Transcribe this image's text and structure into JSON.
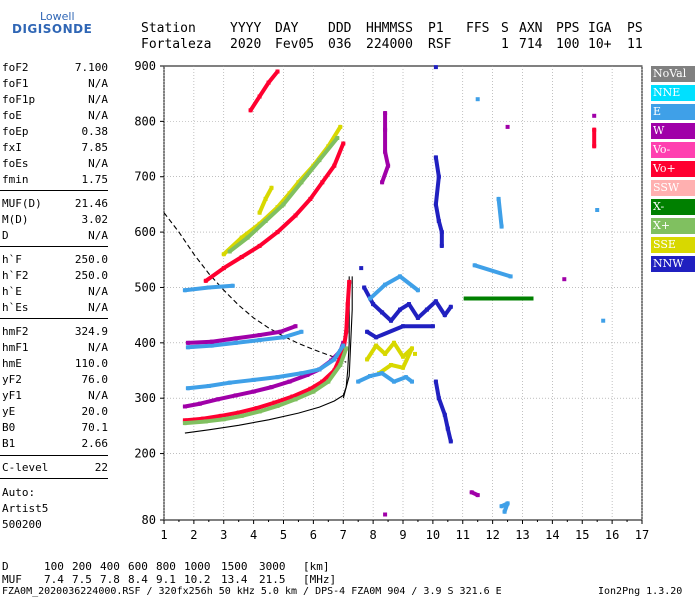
{
  "logo": {
    "top": "Lowell",
    "bottom": "DIGISONDE"
  },
  "header": {
    "labels": [
      "Station",
      "YYYY",
      "DAY",
      "DDD",
      "HHMMSS",
      "P1",
      "FFS",
      "S",
      "AXN",
      "PPS",
      "IGA",
      "PS"
    ],
    "values": [
      "Fortaleza",
      "2020",
      "Fev05",
      "036",
      "224000",
      "RSF",
      "",
      "1",
      "714",
      "100",
      "10+",
      "11"
    ]
  },
  "params": [
    {
      "label": "foF2",
      "value": "7.100"
    },
    {
      "label": "foF1",
      "value": "N/A"
    },
    {
      "label": "foF1p",
      "value": "N/A"
    },
    {
      "label": "foE",
      "value": "N/A"
    },
    {
      "label": "foEp",
      "value": "0.38"
    },
    {
      "label": "fxI",
      "value": "7.85"
    },
    {
      "label": "foEs",
      "value": "N/A"
    },
    {
      "label": "fmin",
      "value": "1.75"
    },
    {
      "label": "MUF(D)",
      "value": "21.46"
    },
    {
      "label": "M(D)",
      "value": "3.02"
    },
    {
      "label": "D",
      "value": "N/A"
    },
    {
      "label": "h`F",
      "value": "250.0"
    },
    {
      "label": "h`F2",
      "value": "250.0"
    },
    {
      "label": "h`E",
      "value": "N/A"
    },
    {
      "label": "h`Es",
      "value": "N/A"
    },
    {
      "label": "hmF2",
      "value": "324.9"
    },
    {
      "label": "hmF1",
      "value": "N/A"
    },
    {
      "label": "hmE",
      "value": "110.0"
    },
    {
      "label": "yF2",
      "value": "76.0"
    },
    {
      "label": "yF1",
      "value": "N/A"
    },
    {
      "label": "yE",
      "value": "20.0"
    },
    {
      "label": "B0",
      "value": "70.1"
    },
    {
      "label": "B1",
      "value": "2.66"
    },
    {
      "label": "C-level",
      "value": "22"
    }
  ],
  "auto": {
    "line1": "Auto:",
    "line2": "Artist5",
    "line3": "500200"
  },
  "legend": [
    {
      "label": "NoVal",
      "color": "#808080"
    },
    {
      "label": "NNE",
      "color": "#00e0ff"
    },
    {
      "label": "E",
      "color": "#3fa0e8"
    },
    {
      "label": "W",
      "color": "#a000a8"
    },
    {
      "label": "Vo-",
      "color": "#ff40b0"
    },
    {
      "label": "Vo+",
      "color": "#ff0030"
    },
    {
      "label": "SSW",
      "color": "#ffb0b0"
    },
    {
      "label": "X-",
      "color": "#008000"
    },
    {
      "label": "X+",
      "color": "#80c060"
    },
    {
      "label": "SSE",
      "color": "#d8d800"
    },
    {
      "label": "NNW",
      "color": "#2020c0"
    }
  ],
  "footer": {
    "d_label": "D",
    "d_values": [
      "100",
      "200",
      "400",
      "600",
      "800",
      "1000",
      "1500",
      "3000",
      "[km]"
    ],
    "muf_label": "MUF",
    "muf_values": [
      "7.4",
      "7.5",
      "7.8",
      "8.4",
      "9.1",
      "10.2",
      "13.4",
      "21.5",
      "[MHz]"
    ],
    "file_line": "FZA0M_2020036224000.RSF / 320fx256h 50 kHz 5.0 km / DPS-4 FZA0M 904 / 3.9 S 321.6 E",
    "version": "Ion2Png 1.3.20"
  },
  "chart_data": {
    "type": "scatter",
    "xlabel": "",
    "ylabel": "",
    "xlim": [
      1,
      17
    ],
    "ylim": [
      80,
      900
    ],
    "x_ticks": [
      1,
      2,
      3,
      4,
      5,
      6,
      7,
      8,
      9,
      10,
      11,
      12,
      13,
      14,
      15,
      16,
      17
    ],
    "y_ticks": [
      80,
      200,
      300,
      400,
      500,
      600,
      700,
      800,
      900
    ],
    "grid": "dotted",
    "legend_position": "right",
    "traces": [
      {
        "name": "W",
        "color": "#a000a8",
        "points": [
          [
            1.7,
            285
          ],
          [
            2.2,
            290
          ],
          [
            2.8,
            298
          ],
          [
            3.4,
            305
          ],
          [
            4.0,
            312
          ],
          [
            4.6,
            320
          ],
          [
            5.2,
            330
          ],
          [
            5.8,
            342
          ],
          [
            6.2,
            352
          ],
          [
            6.6,
            368
          ],
          [
            6.9,
            385
          ],
          [
            7.0,
            400
          ]
        ]
      },
      {
        "name": "Vo+",
        "color": "#ff0030",
        "points": [
          [
            1.7,
            260
          ],
          [
            2.3,
            263
          ],
          [
            2.9,
            268
          ],
          [
            3.5,
            274
          ],
          [
            4.1,
            282
          ],
          [
            4.7,
            292
          ],
          [
            5.3,
            303
          ],
          [
            5.9,
            317
          ],
          [
            6.3,
            330
          ],
          [
            6.7,
            350
          ],
          [
            7.0,
            385
          ],
          [
            7.1,
            420
          ],
          [
            7.15,
            470
          ],
          [
            7.2,
            510
          ]
        ]
      },
      {
        "name": "X+",
        "color": "#80c060",
        "points": [
          [
            1.7,
            255
          ],
          [
            2.4,
            258
          ],
          [
            3.0,
            262
          ],
          [
            3.6,
            268
          ],
          [
            4.2,
            276
          ],
          [
            4.8,
            286
          ],
          [
            5.4,
            298
          ],
          [
            6.0,
            312
          ],
          [
            6.5,
            330
          ],
          [
            6.9,
            360
          ],
          [
            7.1,
            390
          ]
        ]
      },
      {
        "name": "E",
        "color": "#3fa0e8",
        "points": [
          [
            1.8,
            318
          ],
          [
            2.5,
            322
          ],
          [
            3.2,
            328
          ],
          [
            4.0,
            333
          ],
          [
            4.8,
            338
          ],
          [
            5.6,
            345
          ],
          [
            6.2,
            352
          ],
          [
            6.7,
            370
          ],
          [
            7.0,
            395
          ],
          [
            1.8,
            392
          ],
          [
            2.6,
            395
          ],
          [
            3.4,
            400
          ],
          [
            4.2,
            405
          ],
          [
            5.0,
            410
          ],
          [
            5.6,
            420
          ],
          [
            1.7,
            495
          ],
          [
            2.5,
            500
          ],
          [
            3.3,
            503
          ]
        ]
      },
      {
        "name": "W",
        "color": "#a000a8",
        "points": [
          [
            1.8,
            400
          ],
          [
            2.6,
            402
          ],
          [
            3.4,
            408
          ],
          [
            4.2,
            414
          ],
          [
            4.9,
            420
          ],
          [
            5.4,
            430
          ]
        ]
      },
      {
        "name": "Vo+",
        "color": "#ff0030",
        "points": [
          [
            2.4,
            512
          ],
          [
            3.0,
            535
          ],
          [
            3.6,
            555
          ],
          [
            4.2,
            575
          ],
          [
            4.8,
            600
          ],
          [
            5.4,
            630
          ],
          [
            5.9,
            660
          ],
          [
            6.3,
            690
          ],
          [
            6.7,
            720
          ],
          [
            7.0,
            760
          ]
        ]
      },
      {
        "name": "SSE",
        "color": "#d8d800",
        "points": [
          [
            3.0,
            560
          ],
          [
            3.6,
            590
          ],
          [
            4.2,
            615
          ],
          [
            4.8,
            645
          ],
          [
            5.2,
            670
          ],
          [
            5.5,
            690
          ],
          [
            6.0,
            720
          ],
          [
            6.5,
            755
          ],
          [
            6.9,
            790
          ],
          [
            4.2,
            635
          ],
          [
            4.4,
            660
          ],
          [
            4.6,
            680
          ]
        ]
      },
      {
        "name": "X+",
        "color": "#80c060",
        "points": [
          [
            3.2,
            565
          ],
          [
            3.8,
            590
          ],
          [
            4.4,
            620
          ],
          [
            5.0,
            650
          ],
          [
            5.6,
            690
          ],
          [
            6.2,
            730
          ],
          [
            6.8,
            770
          ]
        ]
      },
      {
        "name": "Vo+",
        "color": "#ff0030",
        "points": [
          [
            3.9,
            820
          ],
          [
            4.2,
            845
          ],
          [
            4.5,
            870
          ],
          [
            4.8,
            890
          ]
        ]
      },
      {
        "name": "NNW",
        "color": "#2020c0",
        "points": [
          [
            7.7,
            500
          ],
          [
            8.0,
            470
          ],
          [
            8.3,
            455
          ],
          [
            8.6,
            440
          ],
          [
            8.9,
            460
          ],
          [
            9.2,
            470
          ],
          [
            9.5,
            445
          ],
          [
            9.8,
            460
          ],
          [
            10.1,
            475
          ],
          [
            10.4,
            450
          ],
          [
            10.6,
            465
          ],
          [
            7.6,
            535
          ],
          [
            7.8,
            420
          ],
          [
            8.1,
            410
          ],
          [
            9.0,
            430
          ],
          [
            10.0,
            430
          ]
        ]
      },
      {
        "name": "SSE",
        "color": "#d8d800",
        "points": [
          [
            7.8,
            370
          ],
          [
            8.1,
            395
          ],
          [
            8.4,
            380
          ],
          [
            8.7,
            400
          ],
          [
            9.0,
            375
          ],
          [
            9.3,
            390
          ],
          [
            9.0,
            355
          ],
          [
            8.6,
            360
          ],
          [
            8.2,
            345
          ],
          [
            9.4,
            380
          ]
        ]
      },
      {
        "name": "E",
        "color": "#3fa0e8",
        "points": [
          [
            7.5,
            330
          ],
          [
            7.9,
            340
          ],
          [
            8.3,
            345
          ],
          [
            8.7,
            330
          ],
          [
            9.1,
            338
          ],
          [
            9.3,
            330
          ],
          [
            7.9,
            480
          ],
          [
            8.4,
            505
          ],
          [
            8.9,
            520
          ],
          [
            9.5,
            495
          ]
        ]
      },
      {
        "name": "W",
        "color": "#a000a8",
        "points": [
          [
            8.4,
            815
          ],
          [
            8.4,
            785
          ],
          [
            8.4,
            745
          ],
          [
            8.5,
            720
          ],
          [
            8.3,
            690
          ]
        ]
      },
      {
        "name": "NNW",
        "color": "#2020c0",
        "points": [
          [
            10.1,
            735
          ],
          [
            10.2,
            700
          ],
          [
            10.1,
            650
          ],
          [
            10.2,
            620
          ],
          [
            10.3,
            600
          ],
          [
            10.3,
            575
          ],
          [
            10.1,
            330
          ],
          [
            10.2,
            300
          ],
          [
            10.4,
            270
          ],
          [
            10.5,
            245
          ],
          [
            10.6,
            222
          ],
          [
            10.1,
            898
          ]
        ]
      },
      {
        "name": "X-",
        "color": "#008000",
        "points": [
          [
            11.1,
            480
          ],
          [
            11.6,
            480
          ],
          [
            12.1,
            480
          ],
          [
            12.3,
            480
          ],
          [
            12.4,
            480
          ],
          [
            12.9,
            480
          ],
          [
            13.3,
            480
          ]
        ]
      },
      {
        "name": "E",
        "color": "#3fa0e8",
        "points": [
          [
            11.5,
            840
          ],
          [
            12.2,
            660
          ],
          [
            12.3,
            610
          ],
          [
            11.4,
            540
          ],
          [
            12.6,
            520
          ],
          [
            15.5,
            640
          ],
          [
            15.7,
            440
          ],
          [
            12.3,
            105
          ],
          [
            12.5,
            110
          ],
          [
            12.4,
            95
          ]
        ]
      },
      {
        "name": "W",
        "color": "#a000a8",
        "points": [
          [
            12.5,
            790
          ],
          [
            14.4,
            515
          ],
          [
            15.4,
            810
          ],
          [
            8.4,
            90
          ],
          [
            11.3,
            130
          ],
          [
            11.5,
            125
          ]
        ]
      },
      {
        "name": "Vo+",
        "color": "#ff0030",
        "points": [
          [
            15.4,
            785
          ],
          [
            15.4,
            755
          ]
        ]
      }
    ],
    "curves": [
      {
        "name": "profile-solid",
        "style": "solid",
        "points": [
          [
            1.7,
            237
          ],
          [
            2.5,
            243
          ],
          [
            3.5,
            251
          ],
          [
            4.5,
            261
          ],
          [
            5.5,
            273
          ],
          [
            6.2,
            284
          ],
          [
            6.7,
            295
          ],
          [
            7.0,
            305
          ],
          [
            7.1,
            320
          ],
          [
            7.15,
            350
          ],
          [
            7.2,
            400
          ],
          [
            7.2,
            520
          ]
        ]
      },
      {
        "name": "profile-dashed",
        "style": "dashed",
        "points": [
          [
            1.0,
            635
          ],
          [
            1.5,
            600
          ],
          [
            2.0,
            560
          ],
          [
            2.5,
            525
          ],
          [
            3.0,
            495
          ],
          [
            3.5,
            468
          ],
          [
            4.0,
            445
          ],
          [
            4.5,
            427
          ],
          [
            5.0,
            412
          ],
          [
            5.5,
            399
          ],
          [
            6.0,
            388
          ],
          [
            6.5,
            378
          ],
          [
            6.9,
            370
          ],
          [
            7.1,
            365
          ]
        ]
      },
      {
        "name": "profile-solid-upper",
        "style": "solid",
        "points": [
          [
            7.0,
            300
          ],
          [
            7.2,
            340
          ],
          [
            7.25,
            400
          ],
          [
            7.3,
            460
          ],
          [
            7.3,
            520
          ]
        ]
      }
    ]
  }
}
